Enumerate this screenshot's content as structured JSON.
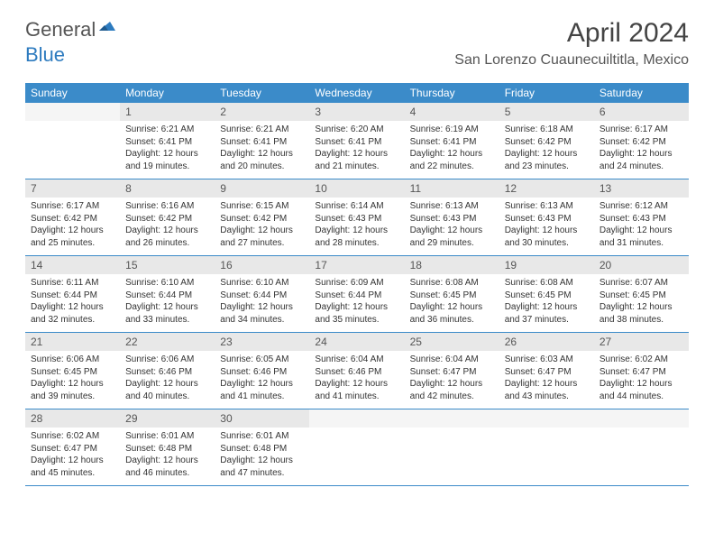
{
  "logo": {
    "text1": "General",
    "text2": "Blue"
  },
  "title": "April 2024",
  "location": "San Lorenzo Cuaunecuiltitla, Mexico",
  "colors": {
    "header_bg": "#3b8bc9",
    "header_text": "#ffffff",
    "daynum_bg": "#e8e8e8",
    "border": "#3b8bc9",
    "logo_gray": "#555555",
    "logo_blue": "#2d7bbf"
  },
  "day_names": [
    "Sunday",
    "Monday",
    "Tuesday",
    "Wednesday",
    "Thursday",
    "Friday",
    "Saturday"
  ],
  "weeks": [
    [
      {
        "n": "",
        "sr": "",
        "ss": "",
        "dl": ""
      },
      {
        "n": "1",
        "sr": "Sunrise: 6:21 AM",
        "ss": "Sunset: 6:41 PM",
        "dl": "Daylight: 12 hours and 19 minutes."
      },
      {
        "n": "2",
        "sr": "Sunrise: 6:21 AM",
        "ss": "Sunset: 6:41 PM",
        "dl": "Daylight: 12 hours and 20 minutes."
      },
      {
        "n": "3",
        "sr": "Sunrise: 6:20 AM",
        "ss": "Sunset: 6:41 PM",
        "dl": "Daylight: 12 hours and 21 minutes."
      },
      {
        "n": "4",
        "sr": "Sunrise: 6:19 AM",
        "ss": "Sunset: 6:41 PM",
        "dl": "Daylight: 12 hours and 22 minutes."
      },
      {
        "n": "5",
        "sr": "Sunrise: 6:18 AM",
        "ss": "Sunset: 6:42 PM",
        "dl": "Daylight: 12 hours and 23 minutes."
      },
      {
        "n": "6",
        "sr": "Sunrise: 6:17 AM",
        "ss": "Sunset: 6:42 PM",
        "dl": "Daylight: 12 hours and 24 minutes."
      }
    ],
    [
      {
        "n": "7",
        "sr": "Sunrise: 6:17 AM",
        "ss": "Sunset: 6:42 PM",
        "dl": "Daylight: 12 hours and 25 minutes."
      },
      {
        "n": "8",
        "sr": "Sunrise: 6:16 AM",
        "ss": "Sunset: 6:42 PM",
        "dl": "Daylight: 12 hours and 26 minutes."
      },
      {
        "n": "9",
        "sr": "Sunrise: 6:15 AM",
        "ss": "Sunset: 6:42 PM",
        "dl": "Daylight: 12 hours and 27 minutes."
      },
      {
        "n": "10",
        "sr": "Sunrise: 6:14 AM",
        "ss": "Sunset: 6:43 PM",
        "dl": "Daylight: 12 hours and 28 minutes."
      },
      {
        "n": "11",
        "sr": "Sunrise: 6:13 AM",
        "ss": "Sunset: 6:43 PM",
        "dl": "Daylight: 12 hours and 29 minutes."
      },
      {
        "n": "12",
        "sr": "Sunrise: 6:13 AM",
        "ss": "Sunset: 6:43 PM",
        "dl": "Daylight: 12 hours and 30 minutes."
      },
      {
        "n": "13",
        "sr": "Sunrise: 6:12 AM",
        "ss": "Sunset: 6:43 PM",
        "dl": "Daylight: 12 hours and 31 minutes."
      }
    ],
    [
      {
        "n": "14",
        "sr": "Sunrise: 6:11 AM",
        "ss": "Sunset: 6:44 PM",
        "dl": "Daylight: 12 hours and 32 minutes."
      },
      {
        "n": "15",
        "sr": "Sunrise: 6:10 AM",
        "ss": "Sunset: 6:44 PM",
        "dl": "Daylight: 12 hours and 33 minutes."
      },
      {
        "n": "16",
        "sr": "Sunrise: 6:10 AM",
        "ss": "Sunset: 6:44 PM",
        "dl": "Daylight: 12 hours and 34 minutes."
      },
      {
        "n": "17",
        "sr": "Sunrise: 6:09 AM",
        "ss": "Sunset: 6:44 PM",
        "dl": "Daylight: 12 hours and 35 minutes."
      },
      {
        "n": "18",
        "sr": "Sunrise: 6:08 AM",
        "ss": "Sunset: 6:45 PM",
        "dl": "Daylight: 12 hours and 36 minutes."
      },
      {
        "n": "19",
        "sr": "Sunrise: 6:08 AM",
        "ss": "Sunset: 6:45 PM",
        "dl": "Daylight: 12 hours and 37 minutes."
      },
      {
        "n": "20",
        "sr": "Sunrise: 6:07 AM",
        "ss": "Sunset: 6:45 PM",
        "dl": "Daylight: 12 hours and 38 minutes."
      }
    ],
    [
      {
        "n": "21",
        "sr": "Sunrise: 6:06 AM",
        "ss": "Sunset: 6:45 PM",
        "dl": "Daylight: 12 hours and 39 minutes."
      },
      {
        "n": "22",
        "sr": "Sunrise: 6:06 AM",
        "ss": "Sunset: 6:46 PM",
        "dl": "Daylight: 12 hours and 40 minutes."
      },
      {
        "n": "23",
        "sr": "Sunrise: 6:05 AM",
        "ss": "Sunset: 6:46 PM",
        "dl": "Daylight: 12 hours and 41 minutes."
      },
      {
        "n": "24",
        "sr": "Sunrise: 6:04 AM",
        "ss": "Sunset: 6:46 PM",
        "dl": "Daylight: 12 hours and 41 minutes."
      },
      {
        "n": "25",
        "sr": "Sunrise: 6:04 AM",
        "ss": "Sunset: 6:47 PM",
        "dl": "Daylight: 12 hours and 42 minutes."
      },
      {
        "n": "26",
        "sr": "Sunrise: 6:03 AM",
        "ss": "Sunset: 6:47 PM",
        "dl": "Daylight: 12 hours and 43 minutes."
      },
      {
        "n": "27",
        "sr": "Sunrise: 6:02 AM",
        "ss": "Sunset: 6:47 PM",
        "dl": "Daylight: 12 hours and 44 minutes."
      }
    ],
    [
      {
        "n": "28",
        "sr": "Sunrise: 6:02 AM",
        "ss": "Sunset: 6:47 PM",
        "dl": "Daylight: 12 hours and 45 minutes."
      },
      {
        "n": "29",
        "sr": "Sunrise: 6:01 AM",
        "ss": "Sunset: 6:48 PM",
        "dl": "Daylight: 12 hours and 46 minutes."
      },
      {
        "n": "30",
        "sr": "Sunrise: 6:01 AM",
        "ss": "Sunset: 6:48 PM",
        "dl": "Daylight: 12 hours and 47 minutes."
      },
      {
        "n": "",
        "sr": "",
        "ss": "",
        "dl": ""
      },
      {
        "n": "",
        "sr": "",
        "ss": "",
        "dl": ""
      },
      {
        "n": "",
        "sr": "",
        "ss": "",
        "dl": ""
      },
      {
        "n": "",
        "sr": "",
        "ss": "",
        "dl": ""
      }
    ]
  ]
}
